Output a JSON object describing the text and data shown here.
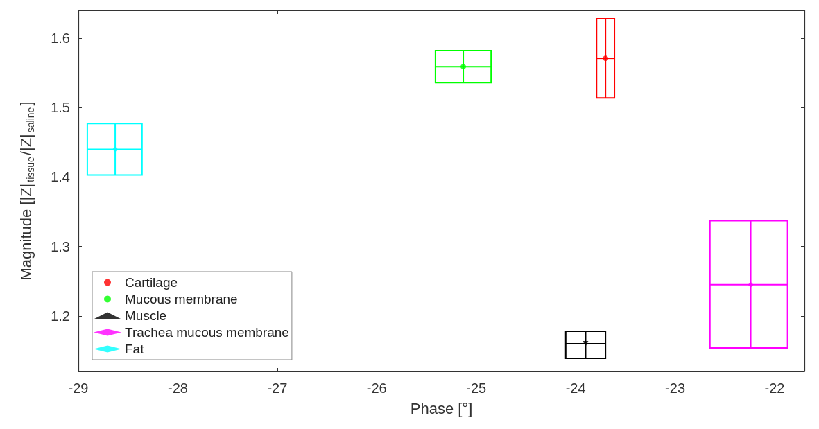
{
  "chart_data": {
    "type": "scatter",
    "xlabel": "Phase [°]",
    "ylabel": "Magnitude [|Z|$_{tissue}$/|Z|$_{saline}$]",
    "xlim": [
      -29,
      -21.7
    ],
    "ylim": [
      1.12,
      1.64
    ],
    "xticks": [
      -29,
      -28,
      -27,
      -26,
      -25,
      -24,
      -23,
      -22
    ],
    "yticks": [
      1.2,
      1.3,
      1.4,
      1.5,
      1.6
    ],
    "grid": false,
    "legend": "bottom left",
    "marker": "circle",
    "series": [
      {
        "name": "Cartilage",
        "color": "#ff0000",
        "x": [
          -23.7
        ],
        "values": [
          1.571
        ],
        "xerrors": [
          [
            -23.79,
            -23.61
          ]
        ],
        "errors": [
          [
            1.514,
            1.628
          ]
        ]
      },
      {
        "name": "Mucous membrane",
        "color": "#00ff00",
        "x": [
          -25.13
        ],
        "values": [
          1.559
        ],
        "xerrors": [
          [
            -25.41,
            -24.85
          ]
        ],
        "errors": [
          [
            1.536,
            1.582
          ]
        ]
      },
      {
        "name": "Muscle",
        "color": "#000000",
        "marker": "triangle",
        "x": [
          -23.9
        ],
        "values": [
          1.16
        ],
        "xerrors": [
          [
            -24.1,
            -23.7
          ]
        ],
        "errors": [
          [
            1.139,
            1.178
          ]
        ]
      },
      {
        "name": "Trachea mucous membrane",
        "color": "#ff00ff",
        "marker": "diamond",
        "x": [
          -22.24
        ],
        "values": [
          1.245
        ],
        "xerrors": [
          [
            -22.65,
            -21.87
          ]
        ],
        "errors": [
          [
            1.154,
            1.337
          ]
        ]
      },
      {
        "name": "Fat",
        "color": "#00ffff",
        "marker": "diamond",
        "x": [
          -28.63
        ],
        "values": [
          1.44
        ],
        "xerrors": [
          [
            -28.91,
            -28.36
          ]
        ],
        "errors": [
          [
            1.403,
            1.477
          ]
        ]
      }
    ]
  }
}
